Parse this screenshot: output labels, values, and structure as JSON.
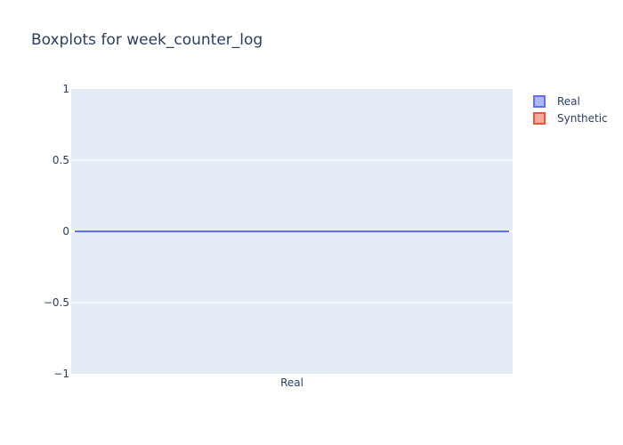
{
  "chart_data": {
    "type": "box",
    "title": "Boxplots for week_counter_log",
    "xlabel": "",
    "ylabel": "",
    "categories": [
      "Real"
    ],
    "ylim": [
      -1,
      1
    ],
    "yticks": [
      1,
      0.5,
      0,
      -0.5,
      -1
    ],
    "ytick_labels": [
      "1",
      "0.5",
      "0",
      "−0.5",
      "−1"
    ],
    "grid": true,
    "legend_position": "top-right",
    "series": [
      {
        "name": "Real",
        "category": "Real",
        "min": 0,
        "q1": 0,
        "median": 0,
        "q3": 0,
        "max": 0,
        "color": "#636efa",
        "fill": "#b2b7fd"
      },
      {
        "name": "Synthetic",
        "category": "Real",
        "min": null,
        "q1": null,
        "median": null,
        "q3": null,
        "max": null,
        "color": "#ef553b",
        "fill": "#f8aa9d"
      }
    ],
    "plot_background": "#e5ecf6",
    "grid_color": "#ffffff",
    "text_color": "#2a3f5f"
  }
}
